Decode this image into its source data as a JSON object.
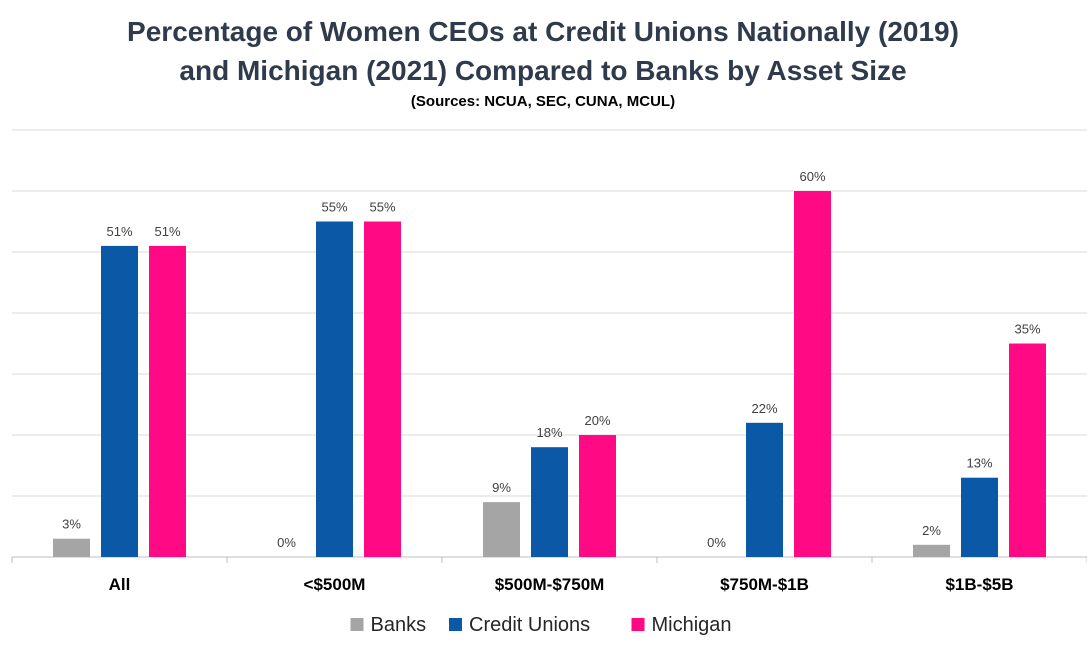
{
  "chart_data": {
    "type": "bar",
    "title_line1": "Percentage of Women CEOs at Credit Unions Nationally (2019)",
    "title_line2": "and Michigan (2021) Compared to Banks by Asset Size",
    "subtitle": "(Sources: NCUA, SEC, CUNA, MCUL)",
    "categories": [
      "All",
      "<$500M",
      "$500M-$750M",
      "$750M-$1B",
      "$1B-$5B"
    ],
    "series": [
      {
        "name": "Banks",
        "color": "#a5a5a5",
        "values": [
          3,
          0,
          9,
          0,
          2
        ],
        "labels": [
          "3%",
          "0%",
          "9%",
          "0%",
          "2%"
        ]
      },
      {
        "name": "Credit Unions",
        "color": "#0a58a6",
        "values": [
          51,
          55,
          18,
          22,
          13
        ],
        "labels": [
          "51%",
          "55%",
          "18%",
          "22%",
          "13%"
        ]
      },
      {
        "name": "Michigan",
        "color": "#ff0a84",
        "values": [
          51,
          55,
          20,
          60,
          35
        ],
        "labels": [
          "51%",
          "55%",
          "20%",
          "60%",
          "35%"
        ]
      }
    ],
    "ylim": [
      0,
      70
    ],
    "gridlines": true,
    "legend_position": "bottom-center"
  }
}
